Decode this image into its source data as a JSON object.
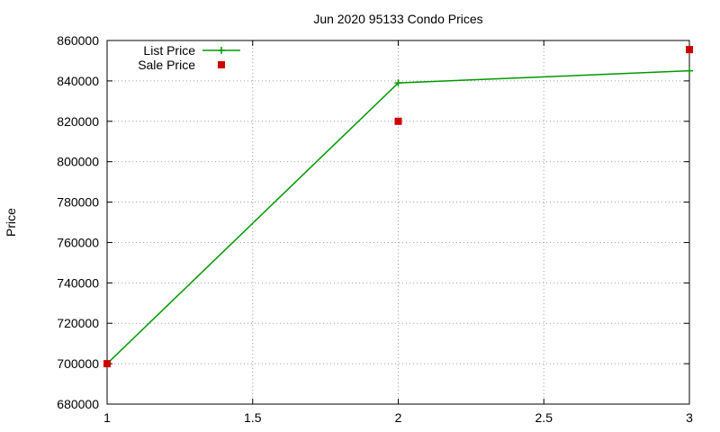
{
  "chart_data": {
    "type": "line",
    "title": "Jun 2020 95133 Condo Prices",
    "xlabel": "",
    "ylabel": "Price",
    "xlim": [
      1,
      3
    ],
    "ylim": [
      680000,
      860000
    ],
    "xticks": [
      1,
      1.5,
      2,
      2.5,
      3
    ],
    "xtick_labels": [
      "1",
      "1.5",
      "2",
      "2.5",
      "3"
    ],
    "yticks": [
      680000,
      700000,
      720000,
      740000,
      760000,
      780000,
      800000,
      820000,
      840000,
      860000
    ],
    "ytick_labels": [
      "680000",
      "700000",
      "720000",
      "740000",
      "760000",
      "780000",
      "800000",
      "820000",
      "840000",
      "860000"
    ],
    "grid": true,
    "legend_position": "top-left",
    "series": [
      {
        "name": "List Price",
        "style": "linespoints",
        "marker": "plus",
        "color": "#009900",
        "x": [
          1,
          2,
          3
        ],
        "y": [
          700000,
          839000,
          845000
        ]
      },
      {
        "name": "Sale Price",
        "style": "points",
        "marker": "square",
        "color": "#cc0000",
        "x": [
          1,
          2,
          3
        ],
        "y": [
          700000,
          820000,
          855500
        ]
      }
    ]
  }
}
